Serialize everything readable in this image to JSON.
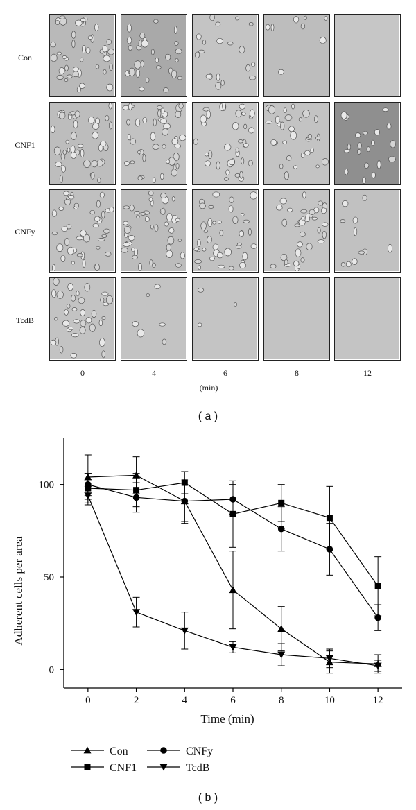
{
  "panel_a": {
    "label": "( a )",
    "rows": [
      "Con",
      "CNF1",
      "CNFy",
      "TcdB"
    ],
    "columns": [
      "0",
      "4",
      "6",
      "8",
      "12"
    ],
    "unit": "(min)"
  },
  "panel_b_label": "( b )",
  "chart_data": {
    "type": "line",
    "xlabel": "Time (min)",
    "ylabel": "Adherent cells per area",
    "x": [
      0,
      2,
      4,
      6,
      8,
      10,
      12
    ],
    "xlim": [
      -1,
      13
    ],
    "ylim": [
      -10,
      125
    ],
    "xticks": [
      0,
      2,
      4,
      6,
      8,
      10,
      12
    ],
    "yticks": [
      0,
      50,
      100
    ],
    "legend_position": "bottom",
    "series": [
      {
        "name": "Con",
        "marker": "triangle-up",
        "values": [
          104,
          105,
          91,
          43,
          22,
          4,
          3
        ],
        "error": [
          12,
          10,
          12,
          21,
          12,
          6,
          5
        ]
      },
      {
        "name": "CNF1",
        "marker": "square",
        "values": [
          98,
          97,
          101,
          84,
          90,
          82,
          45
        ],
        "error": [
          8,
          9,
          6,
          18,
          10,
          17,
          16
        ]
      },
      {
        "name": "CNFy",
        "marker": "circle",
        "values": [
          100,
          93,
          91,
          92,
          76,
          65,
          28
        ],
        "error": [
          6,
          8,
          11,
          8,
          12,
          14,
          7
        ]
      },
      {
        "name": "TcdB",
        "marker": "triangle-down",
        "values": [
          94,
          31,
          21,
          12,
          8,
          6,
          2
        ],
        "error": [
          5,
          8,
          10,
          3,
          6,
          5,
          3
        ]
      }
    ],
    "legend_order": [
      "Con",
      "CNFy",
      "CNF1",
      "TcdB"
    ]
  }
}
